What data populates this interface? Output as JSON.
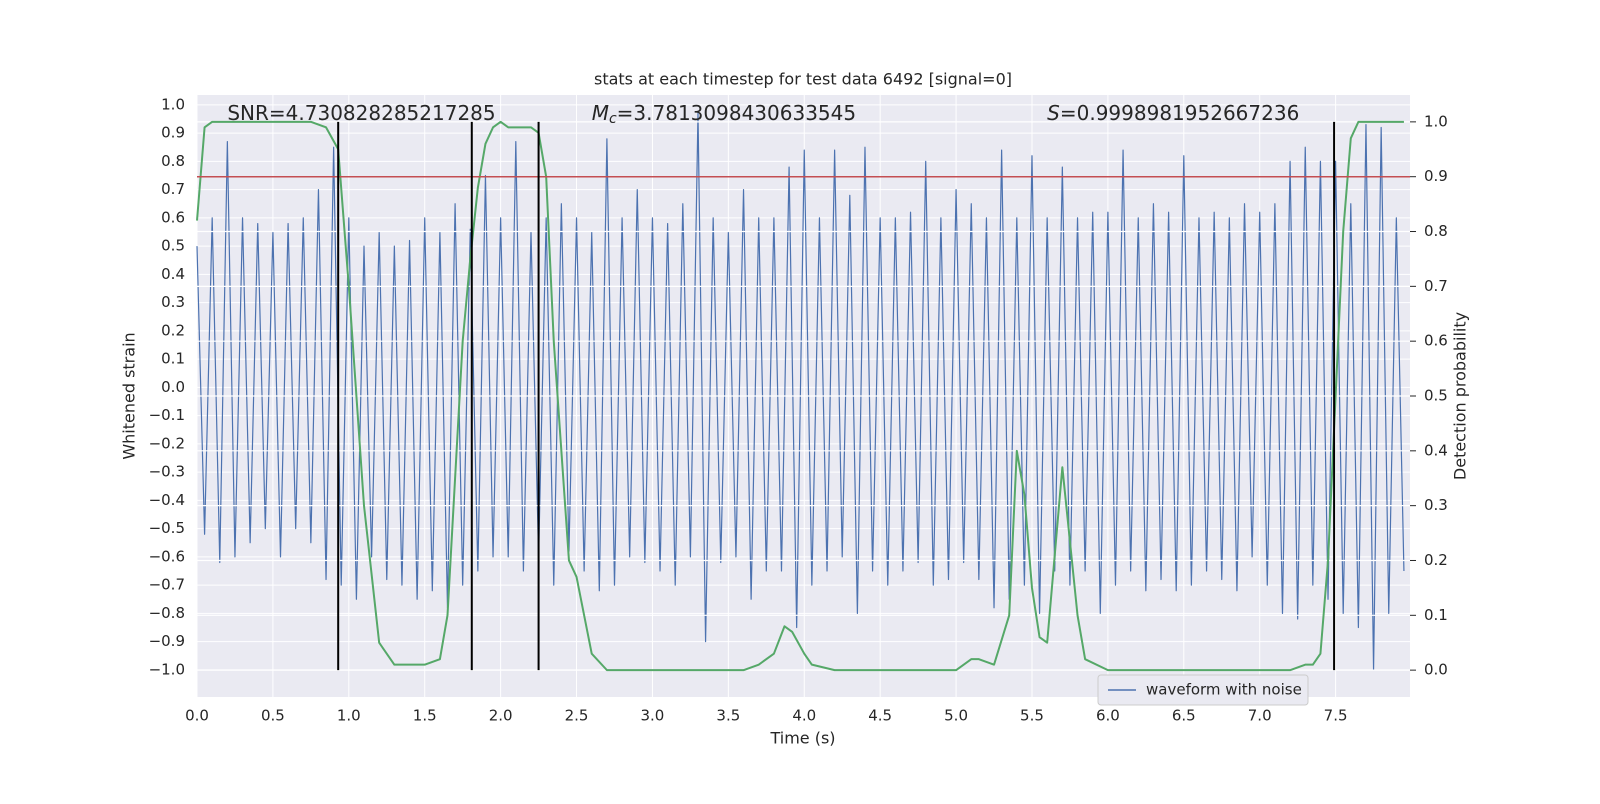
{
  "chart_data": {
    "type": "line",
    "title": "stats at each timestep for test data 6492 [signal=0]",
    "xlabel": "Time (s)",
    "ylabel": "Whitened strain",
    "y2label": "Detection probability",
    "xlim": [
      0,
      7.99
    ],
    "ylim": [
      -1.096,
      1.035
    ],
    "y2lim": [
      -0.049,
      1.049
    ],
    "xticks": [
      {
        "value": 0,
        "label": "0.0"
      },
      {
        "value": 0.5,
        "label": "0.5"
      },
      {
        "value": 1,
        "label": "1.0"
      },
      {
        "value": 1.5,
        "label": "1.5"
      },
      {
        "value": 2,
        "label": "2.0"
      },
      {
        "value": 2.5,
        "label": "2.5"
      },
      {
        "value": 3,
        "label": "3.0"
      },
      {
        "value": 3.5,
        "label": "3.5"
      },
      {
        "value": 4,
        "label": "4.0"
      },
      {
        "value": 4.5,
        "label": "4.5"
      },
      {
        "value": 5,
        "label": "5.0"
      },
      {
        "value": 5.5,
        "label": "5.5"
      },
      {
        "value": 6,
        "label": "6.0"
      },
      {
        "value": 6.5,
        "label": "6.5"
      },
      {
        "value": 7,
        "label": "7.0"
      },
      {
        "value": 7.5,
        "label": "7.5"
      }
    ],
    "yticks": [
      {
        "value": -1,
        "label": "−1.0"
      },
      {
        "value": -0.9,
        "label": "−0.9"
      },
      {
        "value": -0.8,
        "label": "−0.8"
      },
      {
        "value": -0.7,
        "label": "−0.7"
      },
      {
        "value": -0.6,
        "label": "−0.6"
      },
      {
        "value": -0.5,
        "label": "−0.5"
      },
      {
        "value": -0.4,
        "label": "−0.4"
      },
      {
        "value": -0.3,
        "label": "−0.3"
      },
      {
        "value": -0.2,
        "label": "−0.2"
      },
      {
        "value": -0.1,
        "label": "−0.1"
      },
      {
        "value": 0,
        "label": "0.0"
      },
      {
        "value": 0.1,
        "label": "0.1"
      },
      {
        "value": 0.2,
        "label": "0.2"
      },
      {
        "value": 0.3,
        "label": "0.3"
      },
      {
        "value": 0.4,
        "label": "0.4"
      },
      {
        "value": 0.5,
        "label": "0.5"
      },
      {
        "value": 0.6,
        "label": "0.6"
      },
      {
        "value": 0.7,
        "label": "0.7"
      },
      {
        "value": 0.8,
        "label": "0.8"
      },
      {
        "value": 0.9,
        "label": "0.9"
      },
      {
        "value": 1,
        "label": "1.0"
      }
    ],
    "y2ticks": [
      {
        "value": 0,
        "label": "0.0"
      },
      {
        "value": 0.1,
        "label": "0.1"
      },
      {
        "value": 0.2,
        "label": "0.2"
      },
      {
        "value": 0.3,
        "label": "0.3"
      },
      {
        "value": 0.4,
        "label": "0.4"
      },
      {
        "value": 0.5,
        "label": "0.5"
      },
      {
        "value": 0.6,
        "label": "0.6"
      },
      {
        "value": 0.7,
        "label": "0.7"
      },
      {
        "value": 0.8,
        "label": "0.8"
      },
      {
        "value": 0.9,
        "label": "0.9"
      },
      {
        "value": 1,
        "label": "1.0"
      }
    ],
    "grid": true,
    "legend": "lower right",
    "series": [
      {
        "name": "waveform with noise",
        "color": "#4c72b0",
        "x": [
          0,
          0.05,
          0.1,
          0.15,
          0.2,
          0.25,
          0.3,
          0.35,
          0.4,
          0.45,
          0.5,
          0.55,
          0.6,
          0.65,
          0.7,
          0.75,
          0.8,
          0.85,
          0.9,
          0.95,
          1,
          1.05,
          1.1,
          1.15,
          1.2,
          1.25,
          1.3,
          1.35,
          1.4,
          1.45,
          1.5,
          1.55,
          1.6,
          1.65,
          1.7,
          1.75,
          1.8,
          1.85,
          1.9,
          1.95,
          2,
          2.05,
          2.1,
          2.15,
          2.2,
          2.25,
          2.3,
          2.35,
          2.4,
          2.45,
          2.5,
          2.55,
          2.6,
          2.65,
          2.7,
          2.75,
          2.8,
          2.85,
          2.9,
          2.95,
          3,
          3.05,
          3.1,
          3.15,
          3.2,
          3.25,
          3.3,
          3.35,
          3.4,
          3.45,
          3.5,
          3.55,
          3.6,
          3.65,
          3.7,
          3.75,
          3.8,
          3.85,
          3.9,
          3.95,
          4,
          4.05,
          4.1,
          4.15,
          4.2,
          4.25,
          4.3,
          4.35,
          4.4,
          4.45,
          4.5,
          4.55,
          4.6,
          4.65,
          4.7,
          4.75,
          4.8,
          4.85,
          4.9,
          4.95,
          5,
          5.05,
          5.1,
          5.15,
          5.2,
          5.25,
          5.3,
          5.35,
          5.4,
          5.45,
          5.5,
          5.55,
          5.6,
          5.65,
          5.7,
          5.75,
          5.8,
          5.85,
          5.9,
          5.95,
          6,
          6.05,
          6.1,
          6.15,
          6.2,
          6.25,
          6.3,
          6.35,
          6.4,
          6.45,
          6.5,
          6.55,
          6.6,
          6.65,
          6.7,
          6.75,
          6.8,
          6.85,
          6.9,
          6.95,
          7,
          7.05,
          7.1,
          7.15,
          7.2,
          7.25,
          7.3,
          7.35,
          7.4,
          7.45,
          7.5,
          7.55,
          7.6,
          7.65,
          7.7,
          7.75,
          7.8,
          7.85,
          7.9,
          7.95
        ],
        "values": [
          0.5,
          -0.52,
          0.6,
          -0.62,
          0.87,
          -0.6,
          0.6,
          -0.55,
          0.58,
          -0.5,
          0.55,
          -0.6,
          0.58,
          -0.5,
          0.6,
          -0.55,
          0.7,
          -0.68,
          0.85,
          -0.7,
          0.6,
          -0.75,
          0.5,
          -0.6,
          0.55,
          -0.68,
          0.5,
          -0.7,
          0.52,
          -0.75,
          0.6,
          -0.72,
          0.55,
          -0.78,
          0.65,
          -0.7,
          0.56,
          -0.65,
          0.75,
          -0.6,
          0.6,
          -0.6,
          0.87,
          -0.65,
          0.55,
          -0.6,
          0.6,
          -0.7,
          0.65,
          -0.58,
          0.6,
          -0.65,
          0.55,
          -0.72,
          0.88,
          -0.7,
          0.6,
          -0.6,
          0.7,
          -0.62,
          0.6,
          -0.65,
          0.58,
          -0.7,
          0.65,
          -0.6,
          0.97,
          -0.9,
          0.6,
          -0.62,
          0.55,
          -0.6,
          0.7,
          -0.75,
          0.6,
          -0.65,
          0.6,
          -0.65,
          0.78,
          -0.85,
          0.84,
          -0.7,
          0.6,
          -0.65,
          0.84,
          -0.6,
          0.68,
          -0.8,
          0.85,
          -0.65,
          0.6,
          -0.7,
          0.6,
          -0.65,
          0.62,
          -0.62,
          0.8,
          -0.7,
          0.6,
          -0.68,
          0.7,
          -0.62,
          0.65,
          -0.68,
          0.6,
          -0.78,
          0.84,
          -0.75,
          0.6,
          -0.7,
          0.82,
          -0.8,
          0.6,
          -0.65,
          0.78,
          -0.7,
          0.6,
          -0.65,
          0.62,
          -0.8,
          0.62,
          -0.7,
          0.84,
          -0.65,
          0.6,
          -0.72,
          0.65,
          -0.68,
          0.62,
          -0.72,
          0.82,
          -0.7,
          0.6,
          -0.65,
          0.62,
          -0.68,
          0.6,
          -0.72,
          0.65,
          -0.6,
          0.62,
          -0.7,
          0.65,
          -0.8,
          0.8,
          -0.82,
          0.85,
          -0.7,
          0.8,
          -0.75,
          0.8,
          -0.8,
          0.65,
          -0.85,
          0.93,
          -1.0,
          0.92,
          -0.8,
          0.6,
          -0.65
        ]
      },
      {
        "color": "#55a868",
        "axis": "y2",
        "x": [
          0,
          0.05,
          0.1,
          0.2,
          0.4,
          0.6,
          0.75,
          0.85,
          0.93,
          1,
          1.05,
          1.1,
          1.2,
          1.3,
          1.4,
          1.5,
          1.6,
          1.65,
          1.7,
          1.75,
          1.8,
          1.85,
          1.9,
          1.95,
          2,
          2.05,
          2.1,
          2.2,
          2.25,
          2.3,
          2.35,
          2.45,
          2.5,
          2.6,
          2.7,
          2.8,
          3,
          3.2,
          3.4,
          3.6,
          3.7,
          3.8,
          3.87,
          3.92,
          4,
          4.05,
          4.2,
          4.5,
          4.7,
          4.9,
          5,
          5.1,
          5.15,
          5.25,
          5.35,
          5.4,
          5.45,
          5.5,
          5.55,
          5.6,
          5.7,
          5.8,
          5.85,
          6,
          6.5,
          7,
          7.2,
          7.3,
          7.35,
          7.4,
          7.45,
          7.5,
          7.55,
          7.6,
          7.65,
          7.8,
          7.95
        ],
        "values": [
          0.82,
          0.99,
          1.0,
          1.0,
          1.0,
          1.0,
          1.0,
          0.99,
          0.95,
          0.7,
          0.5,
          0.3,
          0.05,
          0.01,
          0.01,
          0.01,
          0.02,
          0.1,
          0.35,
          0.6,
          0.75,
          0.88,
          0.96,
          0.99,
          1.0,
          0.99,
          0.99,
          0.99,
          0.98,
          0.9,
          0.6,
          0.2,
          0.17,
          0.03,
          0.0,
          0.0,
          0.0,
          0.0,
          0.0,
          0.0,
          0.01,
          0.03,
          0.08,
          0.07,
          0.03,
          0.01,
          0.0,
          0.0,
          0.0,
          0.0,
          0.0,
          0.02,
          0.02,
          0.01,
          0.1,
          0.4,
          0.32,
          0.15,
          0.06,
          0.05,
          0.37,
          0.1,
          0.02,
          0.0,
          0.0,
          0.0,
          0.0,
          0.01,
          0.01,
          0.03,
          0.2,
          0.5,
          0.8,
          0.97,
          1.0,
          1.0,
          1.0
        ]
      }
    ],
    "hlines": [
      {
        "value": 0.9,
        "axis": "y2",
        "color": "#c44e52"
      }
    ],
    "vlines": {
      "color": "#000000",
      "x": [
        0.93,
        1.81,
        2.25,
        7.49
      ]
    },
    "annotations": [
      {
        "text": "SNR=4.730828285217285",
        "x": 0.2
      },
      {
        "symbol": "M",
        "subscript": "c",
        "text": "=3.7813098430633545",
        "x": 2.6
      },
      {
        "symbol": "S",
        "text": "=0.9998981952667236",
        "x": 5.6
      }
    ]
  }
}
